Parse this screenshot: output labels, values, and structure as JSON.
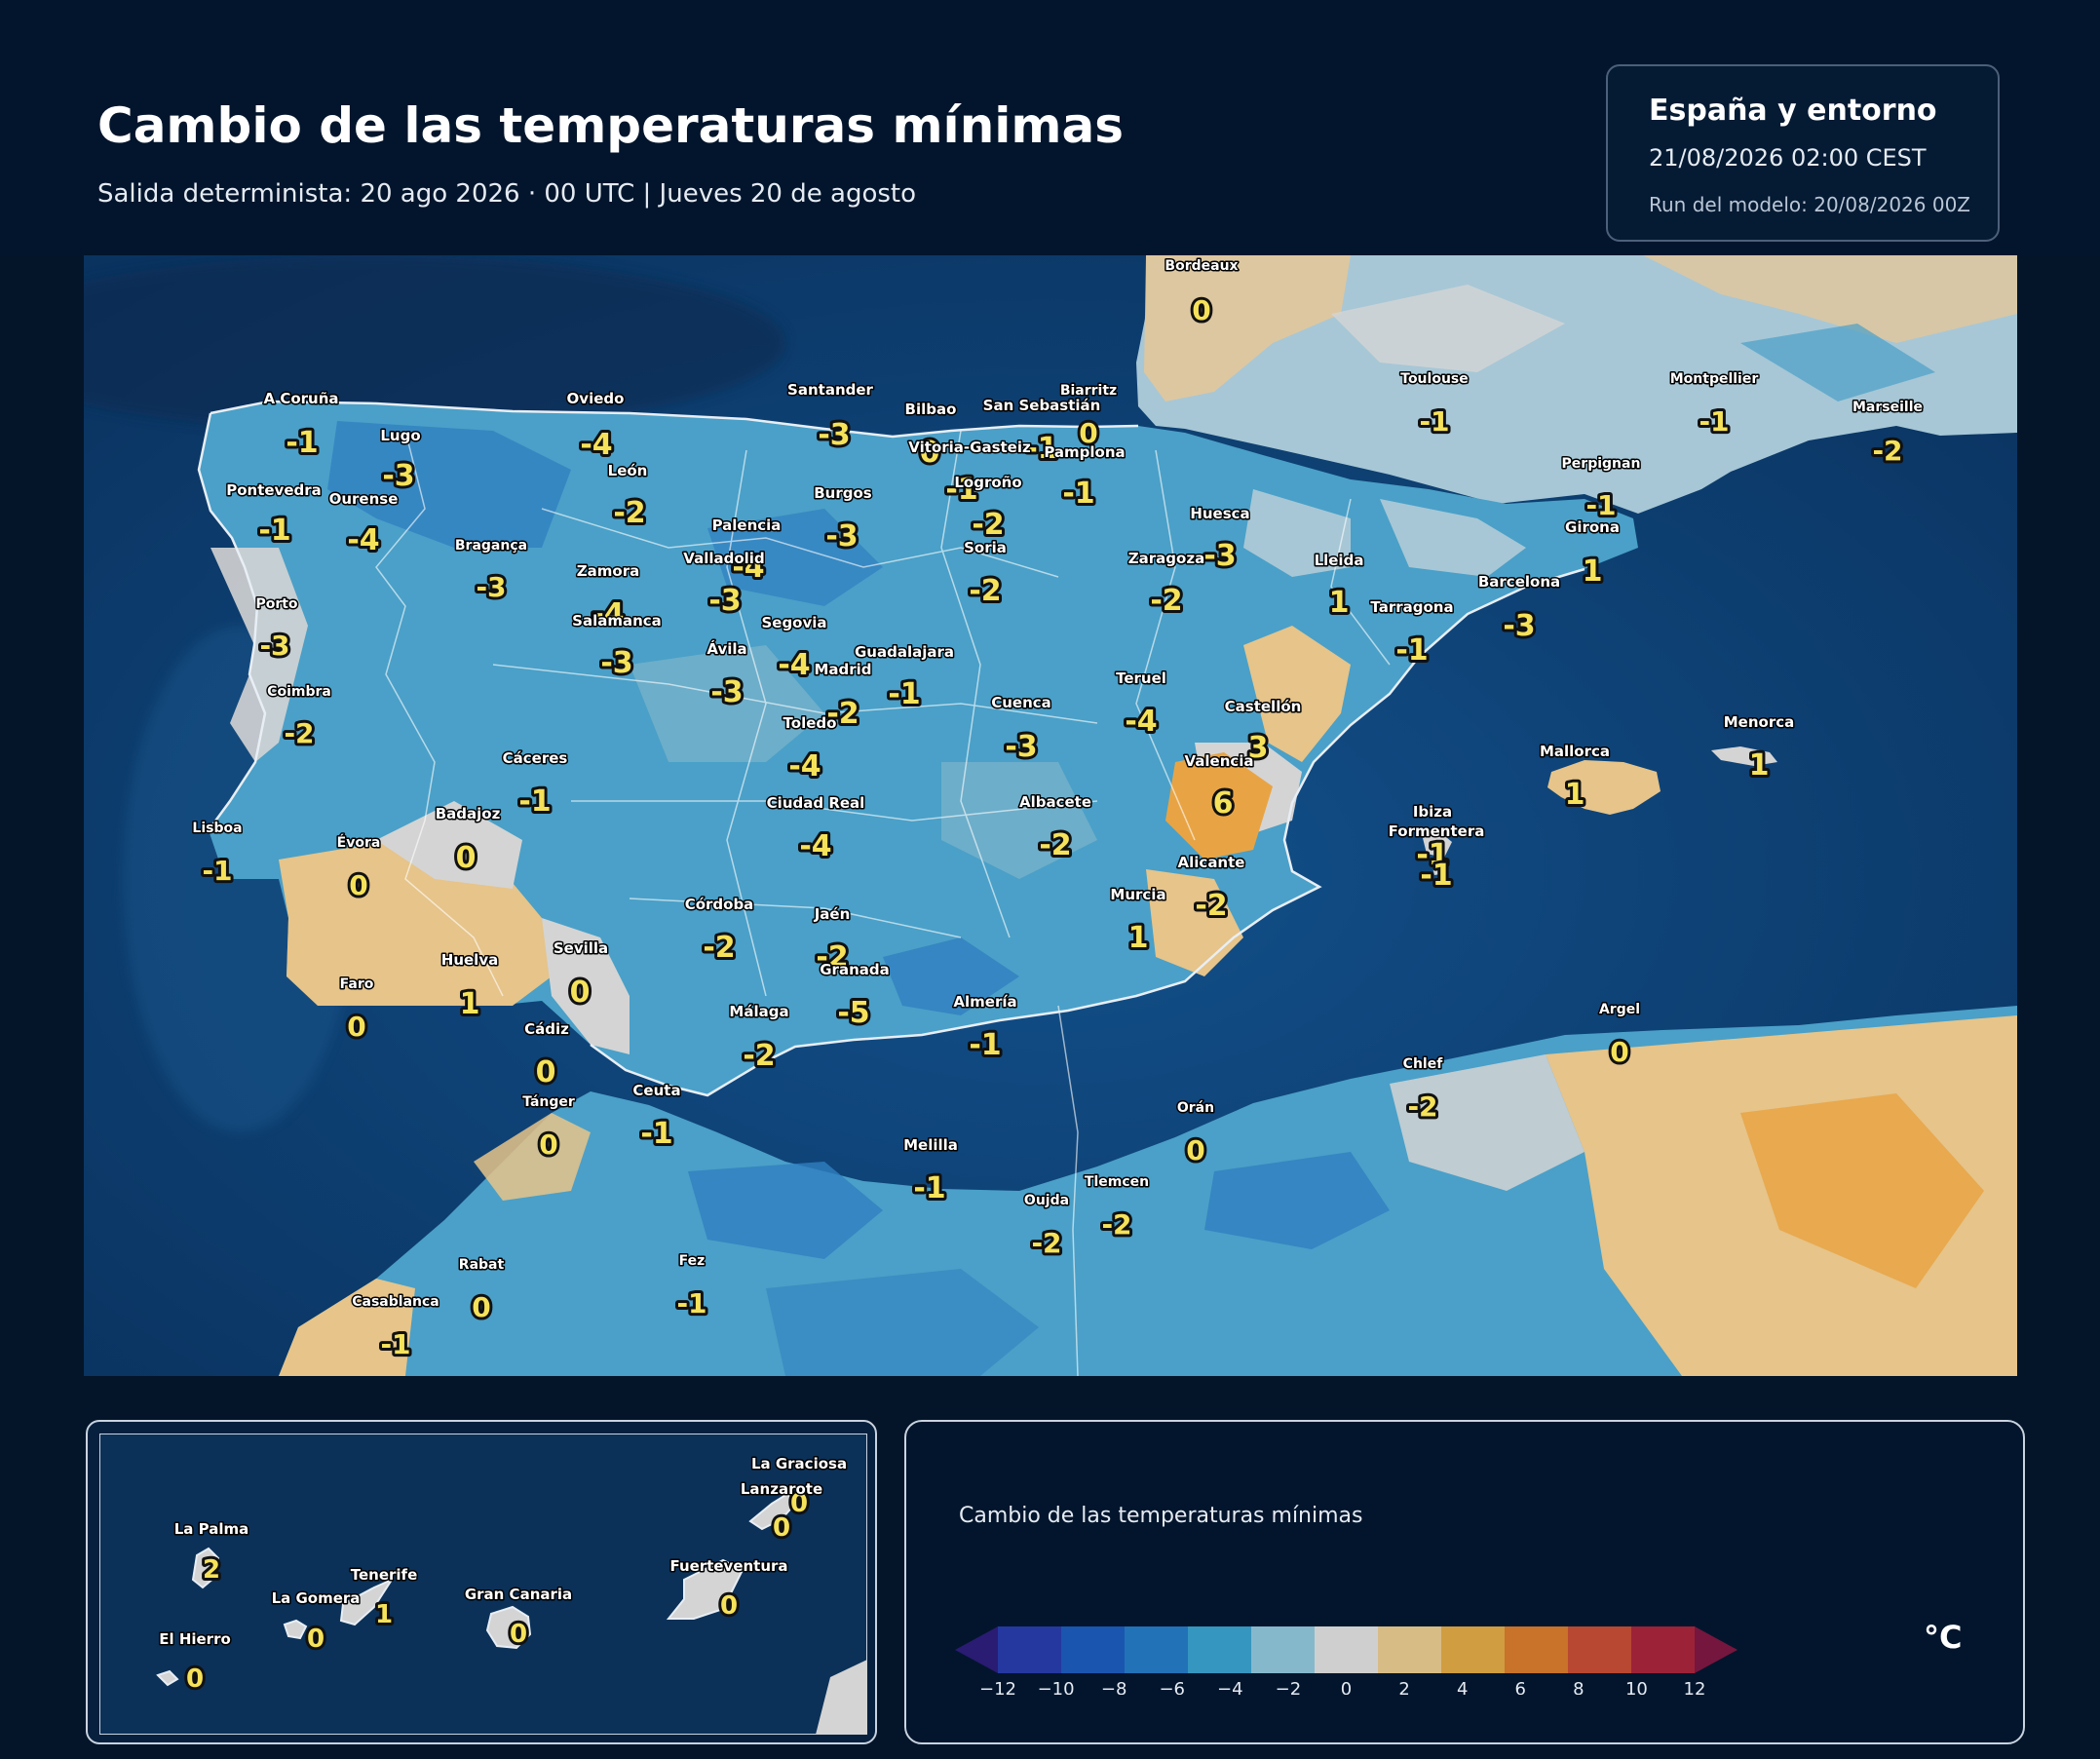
{
  "header": {
    "title": "Cambio de las temperaturas mínimas",
    "subtitle": "Salida determinista: 20 ago 2026 · 00 UTC  |  Jueves 20 de agosto"
  },
  "info": {
    "region": "España y entorno",
    "datetime": "21/08/2026  02:00 CEST",
    "run": "Run del modelo: 20/08/2026 00Z"
  },
  "colors": {
    "sea": "#0c3d6a",
    "cold_1": "#4aa0c8",
    "cold_2": "#2f7fc0",
    "neutral": "#d4d4d4",
    "warm_1": "#e6c48a",
    "warm_2": "#e8a444"
  },
  "cities": [
    {
      "name": "A Coruña",
      "value": "-1"
    },
    {
      "name": "Lugo",
      "value": "-3"
    },
    {
      "name": "Oviedo",
      "value": "-4"
    },
    {
      "name": "Santander",
      "value": "-3"
    },
    {
      "name": "Bilbao",
      "value": "0"
    },
    {
      "name": "San Sebastián",
      "value": "-1"
    },
    {
      "name": "Biarritz",
      "value": "0"
    },
    {
      "name": "Bordeaux",
      "value": "0"
    },
    {
      "name": "Toulouse",
      "value": "-1"
    },
    {
      "name": "Montpellier",
      "value": "-1"
    },
    {
      "name": "Marseille",
      "value": "-2"
    },
    {
      "name": "Pontevedra",
      "value": "-1"
    },
    {
      "name": "Ourense",
      "value": "-4"
    },
    {
      "name": "León",
      "value": "-2"
    },
    {
      "name": "Vitoria-Gasteiz",
      "value": "-1"
    },
    {
      "name": "Pamplona",
      "value": "-1"
    },
    {
      "name": "Logroño",
      "value": "-2"
    },
    {
      "name": "Burgos",
      "value": "-3"
    },
    {
      "name": "Palencia",
      "value": "-4"
    },
    {
      "name": "Bragança",
      "value": "-3"
    },
    {
      "name": "Zamora",
      "value": "-4"
    },
    {
      "name": "Valladolid",
      "value": "-3"
    },
    {
      "name": "Soria",
      "value": "-2"
    },
    {
      "name": "Huesca",
      "value": "-3"
    },
    {
      "name": "Zaragoza",
      "value": "-2"
    },
    {
      "name": "Lleida",
      "value": "1"
    },
    {
      "name": "Perpignan",
      "value": "-1"
    },
    {
      "name": "Girona",
      "value": "1"
    },
    {
      "name": "Barcelona",
      "value": "-3"
    },
    {
      "name": "Tarragona",
      "value": "-1"
    },
    {
      "name": "Porto",
      "value": "-3"
    },
    {
      "name": "Salamanca",
      "value": "-3"
    },
    {
      "name": "Segovia",
      "value": "-4"
    },
    {
      "name": "Ávila",
      "value": "-3"
    },
    {
      "name": "Guadalajara",
      "value": "-1"
    },
    {
      "name": "Madrid",
      "value": "-2"
    },
    {
      "name": "Teruel",
      "value": "-4"
    },
    {
      "name": "Coimbra",
      "value": "-2"
    },
    {
      "name": "Cuenca",
      "value": "-3"
    },
    {
      "name": "Toledo",
      "value": "-4"
    },
    {
      "name": "Castellón",
      "value": "3"
    },
    {
      "name": "Cáceres",
      "value": "-1"
    },
    {
      "name": "Valencia",
      "value": "6"
    },
    {
      "name": "Badajoz",
      "value": "0"
    },
    {
      "name": "Ciudad Real",
      "value": "-4"
    },
    {
      "name": "Albacete",
      "value": "-2"
    },
    {
      "name": "Lisboa",
      "value": "-1"
    },
    {
      "name": "Évora",
      "value": "0"
    },
    {
      "name": "Alicante",
      "value": "-2"
    },
    {
      "name": "Murcia",
      "value": "1"
    },
    {
      "name": "Córdoba",
      "value": "-2"
    },
    {
      "name": "Jaén",
      "value": "-2"
    },
    {
      "name": "Huelva",
      "value": "1"
    },
    {
      "name": "Sevilla",
      "value": "0"
    },
    {
      "name": "Granada",
      "value": "-5"
    },
    {
      "name": "Faro",
      "value": "0"
    },
    {
      "name": "Málaga",
      "value": "-2"
    },
    {
      "name": "Almería",
      "value": "-1"
    },
    {
      "name": "Cádiz",
      "value": "0"
    },
    {
      "name": "Tánger",
      "value": "0"
    },
    {
      "name": "Ceuta",
      "value": "-1"
    },
    {
      "name": "Melilla",
      "value": "-1"
    },
    {
      "name": "Oujda",
      "value": "-2"
    },
    {
      "name": "Tlemcen",
      "value": "-2"
    },
    {
      "name": "Orán",
      "value": "0"
    },
    {
      "name": "Chlef",
      "value": "-2"
    },
    {
      "name": "Argel",
      "value": "0"
    },
    {
      "name": "Mallorca",
      "value": "1"
    },
    {
      "name": "Menorca",
      "value": "1"
    },
    {
      "name": "Ibiza",
      "value": "-1"
    },
    {
      "name": "Formentera",
      "value": "-1"
    },
    {
      "name": "Rabat",
      "value": "0"
    },
    {
      "name": "Casablanca",
      "value": "-1"
    },
    {
      "name": "Fez",
      "value": "-1"
    }
  ],
  "inset": {
    "islands": [
      {
        "name": "La Graciosa",
        "value": "0"
      },
      {
        "name": "Lanzarote",
        "value": "0"
      },
      {
        "name": "La Palma",
        "value": "2"
      },
      {
        "name": "Tenerife",
        "value": "1"
      },
      {
        "name": "La Gomera",
        "value": "0"
      },
      {
        "name": "Gran Canaria",
        "value": "0"
      },
      {
        "name": "Fuerteventura",
        "value": "0"
      },
      {
        "name": "El Hierro",
        "value": "0"
      }
    ]
  },
  "legend": {
    "title": "Cambio de las temperaturas mínimas",
    "unit": "°C",
    "ticks": [
      "−12",
      "−10",
      "−8",
      "−6",
      "−4",
      "−2",
      "0",
      "2",
      "4",
      "6",
      "8",
      "10",
      "12"
    ],
    "colors": [
      "#2a1b73",
      "#2538a0",
      "#1a55b0",
      "#2272b8",
      "#3596c0",
      "#86b8cc",
      "#cfcfcf",
      "#d8bc86",
      "#d09d40",
      "#c8722a",
      "#b84832",
      "#9c2238",
      "#75163e"
    ]
  }
}
